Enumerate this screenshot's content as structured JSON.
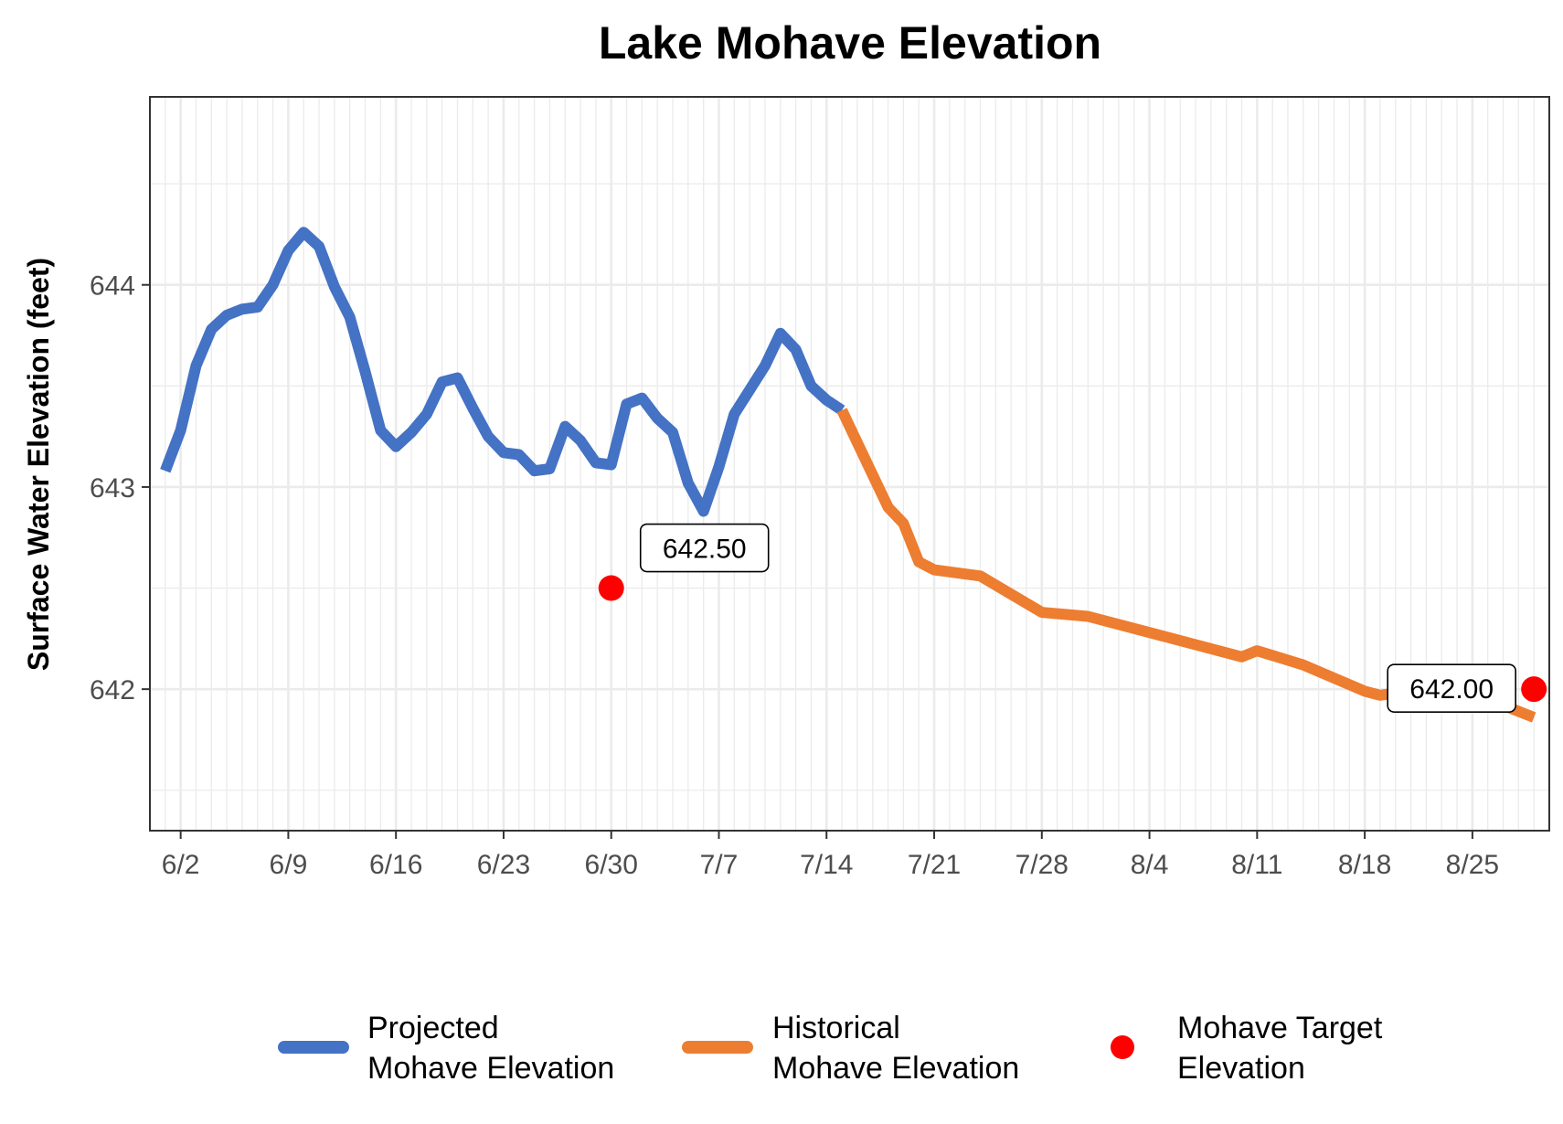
{
  "chart_data": {
    "type": "line",
    "title": "Lake Mohave Elevation",
    "ylabel": "Surface Water Elevation (feet)",
    "xlabel": "",
    "ylim": [
      641.3,
      644.93
    ],
    "xlim": [
      "2025-05-31",
      "2025-08-30"
    ],
    "x_ticks": [
      {
        "date": "2025-06-02",
        "label": "6/2"
      },
      {
        "date": "2025-06-09",
        "label": "6/9"
      },
      {
        "date": "2025-06-16",
        "label": "6/16"
      },
      {
        "date": "2025-06-23",
        "label": "6/23"
      },
      {
        "date": "2025-06-30",
        "label": "6/30"
      },
      {
        "date": "2025-07-07",
        "label": "7/7"
      },
      {
        "date": "2025-07-14",
        "label": "7/14"
      },
      {
        "date": "2025-07-21",
        "label": "7/21"
      },
      {
        "date": "2025-07-28",
        "label": "7/28"
      },
      {
        "date": "2025-08-04",
        "label": "8/4"
      },
      {
        "date": "2025-08-11",
        "label": "8/11"
      },
      {
        "date": "2025-08-18",
        "label": "8/18"
      },
      {
        "date": "2025-08-25",
        "label": "8/25"
      }
    ],
    "y_ticks": [
      642,
      643,
      644
    ],
    "y_minor_ticks": [
      641.5,
      642.5,
      643.5,
      644.5
    ],
    "grid": true,
    "legend_position": "bottom",
    "series": [
      {
        "name": "Projected\nMohave Elevation",
        "color": "#4472C4",
        "points": [
          [
            "2025-06-01",
            643.08
          ],
          [
            "2025-06-02",
            643.28
          ],
          [
            "2025-06-03",
            643.6
          ],
          [
            "2025-06-04",
            643.78
          ],
          [
            "2025-06-05",
            643.85
          ],
          [
            "2025-06-06",
            643.88
          ],
          [
            "2025-06-07",
            643.89
          ],
          [
            "2025-06-08",
            644.0
          ],
          [
            "2025-06-09",
            644.17
          ],
          [
            "2025-06-10",
            644.26
          ],
          [
            "2025-06-11",
            644.19
          ],
          [
            "2025-06-12",
            643.99
          ],
          [
            "2025-06-13",
            643.84
          ],
          [
            "2025-06-14",
            643.57
          ],
          [
            "2025-06-15",
            643.28
          ],
          [
            "2025-06-16",
            643.2
          ],
          [
            "2025-06-17",
            643.27
          ],
          [
            "2025-06-18",
            643.36
          ],
          [
            "2025-06-19",
            643.52
          ],
          [
            "2025-06-20",
            643.54
          ],
          [
            "2025-06-21",
            643.39
          ],
          [
            "2025-06-22",
            643.25
          ],
          [
            "2025-06-23",
            643.17
          ],
          [
            "2025-06-24",
            643.16
          ],
          [
            "2025-06-25",
            643.08
          ],
          [
            "2025-06-26",
            643.09
          ],
          [
            "2025-06-27",
            643.3
          ],
          [
            "2025-06-28",
            643.23
          ],
          [
            "2025-06-29",
            643.12
          ],
          [
            "2025-06-30",
            643.11
          ],
          [
            "2025-07-01",
            643.41
          ],
          [
            "2025-07-02",
            643.44
          ],
          [
            "2025-07-03",
            643.34
          ],
          [
            "2025-07-04",
            643.27
          ],
          [
            "2025-07-05",
            643.02
          ],
          [
            "2025-07-06",
            642.88
          ],
          [
            "2025-07-07",
            643.1
          ],
          [
            "2025-07-08",
            643.36
          ],
          [
            "2025-07-09",
            643.48
          ],
          [
            "2025-07-10",
            643.6
          ],
          [
            "2025-07-11",
            643.76
          ],
          [
            "2025-07-12",
            643.68
          ],
          [
            "2025-07-13",
            643.5
          ],
          [
            "2025-07-14",
            643.43
          ],
          [
            "2025-07-15",
            643.38
          ]
        ]
      },
      {
        "name": "Historical\nMohave Elevation",
        "color": "#ED7D31",
        "points": [
          [
            "2025-07-15",
            643.38
          ],
          [
            "2025-07-16",
            643.22
          ],
          [
            "2025-07-17",
            643.06
          ],
          [
            "2025-07-18",
            642.9
          ],
          [
            "2025-07-19",
            642.82
          ],
          [
            "2025-07-20",
            642.63
          ],
          [
            "2025-07-21",
            642.59
          ],
          [
            "2025-07-24",
            642.56
          ],
          [
            "2025-07-28",
            642.38
          ],
          [
            "2025-07-31",
            642.36
          ],
          [
            "2025-08-04",
            642.28
          ],
          [
            "2025-08-10",
            642.16
          ],
          [
            "2025-08-11",
            642.19
          ],
          [
            "2025-08-14",
            642.12
          ],
          [
            "2025-08-18",
            641.99
          ],
          [
            "2025-08-19",
            641.97
          ],
          [
            "2025-08-23",
            642.01
          ],
          [
            "2025-08-26",
            641.95
          ],
          [
            "2025-08-29",
            641.86
          ]
        ]
      }
    ],
    "targets": {
      "name": "Mohave Target\nElevation",
      "color": "#FF0000",
      "points": [
        {
          "date": "2025-06-30",
          "value": 642.5,
          "label": "642.50"
        },
        {
          "date": "2025-08-29",
          "value": 642.0,
          "label": "642.00"
        }
      ]
    }
  }
}
